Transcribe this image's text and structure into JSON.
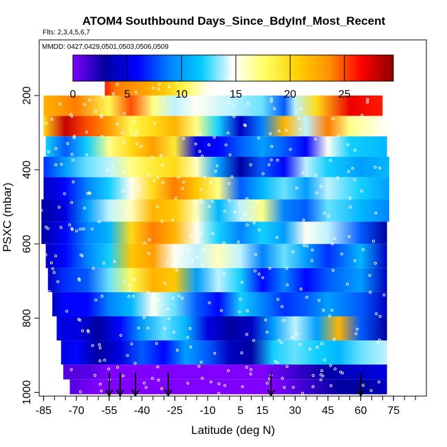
{
  "chart_data": {
    "type": "heatmap",
    "title": "ATOM4 Southbound Days_Since_BdyInf_Most_Recent",
    "flights_label": "Flts: 2,3,4,5,6,7",
    "dates_label": "MMDD: 0427,0429,0501,0503,0506,0509",
    "xlabel": "Latitude (deg N)",
    "ylabel": "PSXC (mbar)",
    "xlim": [
      -87,
      90
    ],
    "ylim": [
      1010,
      50
    ],
    "x_ticks": [
      -85,
      -70,
      -55,
      -40,
      -25,
      -10,
      5,
      15,
      30,
      45,
      60,
      75
    ],
    "x_tick_labels": [
      "-85",
      "-70",
      "-55",
      "-40",
      "-25",
      "-10",
      "5",
      "15",
      "30",
      "45",
      "60",
      "75"
    ],
    "y_ticks": [
      200,
      400,
      600,
      800,
      1000
    ],
    "y_tick_labels": [
      "200",
      "400",
      "600",
      "800",
      "1000"
    ],
    "colorbar": {
      "range": [
        0,
        29.5
      ],
      "ticks": [
        0,
        5,
        10,
        15,
        20,
        25
      ],
      "tick_labels": [
        "0",
        "5",
        "10",
        "15",
        "20",
        "25"
      ],
      "colors": [
        "#7f00ff",
        "#0000a0",
        "#0000ff",
        "#0080ff",
        "#00ccff",
        "#ffffff",
        "#ffff60",
        "#ffd000",
        "#ff9000",
        "#ff0000",
        "#8b0000"
      ]
    },
    "layers": [
      {
        "p_top": 160,
        "p_bot": 200,
        "x_start": -57,
        "x_end": -7,
        "values": [
          [
            -57,
            26
          ],
          [
            -52,
            24
          ],
          [
            -40,
            23
          ],
          [
            -30,
            21
          ],
          [
            -20,
            18
          ],
          [
            -10,
            15
          ]
        ]
      },
      {
        "p_top": 200,
        "p_bot": 255,
        "x_start": -85,
        "x_end": 70,
        "values": [
          [
            -85,
            22
          ],
          [
            -70,
            24
          ],
          [
            -55,
            18
          ],
          [
            -45,
            25
          ],
          [
            -35,
            17
          ],
          [
            -25,
            14
          ],
          [
            -15,
            15
          ],
          [
            0,
            14
          ],
          [
            15,
            13
          ],
          [
            25,
            8
          ],
          [
            30,
            14
          ],
          [
            40,
            20
          ],
          [
            55,
            27
          ],
          [
            70,
            26
          ]
        ]
      },
      {
        "p_top": 255,
        "p_bot": 310,
        "x_start": -85,
        "x_end": 72,
        "values": [
          [
            -85,
            20
          ],
          [
            -75,
            28
          ],
          [
            -65,
            25
          ],
          [
            -55,
            23
          ],
          [
            -45,
            18
          ],
          [
            -35,
            20
          ],
          [
            -25,
            22
          ],
          [
            -15,
            17
          ],
          [
            -5,
            12
          ],
          [
            5,
            4
          ],
          [
            15,
            9
          ],
          [
            25,
            22
          ],
          [
            35,
            14
          ],
          [
            45,
            24
          ],
          [
            55,
            17
          ],
          [
            70,
            15
          ]
        ]
      },
      {
        "p_top": 310,
        "p_bot": 365,
        "x_start": -84,
        "x_end": 72,
        "values": [
          [
            -84,
            12
          ],
          [
            -75,
            8
          ],
          [
            -65,
            12
          ],
          [
            -55,
            17
          ],
          [
            -45,
            20
          ],
          [
            -35,
            23
          ],
          [
            -25,
            19
          ],
          [
            -15,
            5
          ],
          [
            -5,
            6
          ],
          [
            5,
            8
          ],
          [
            15,
            10
          ],
          [
            25,
            8
          ],
          [
            35,
            6
          ],
          [
            45,
            15
          ],
          [
            55,
            12
          ],
          [
            72,
            11
          ]
        ]
      },
      {
        "p_top": 365,
        "p_bot": 420,
        "x_start": -85,
        "x_end": 73,
        "values": [
          [
            -85,
            7
          ],
          [
            -75,
            10
          ],
          [
            -65,
            13
          ],
          [
            -55,
            14
          ],
          [
            -45,
            17
          ],
          [
            -35,
            19
          ],
          [
            -25,
            20
          ],
          [
            -15,
            16
          ],
          [
            -5,
            10
          ],
          [
            5,
            3
          ],
          [
            15,
            8
          ],
          [
            25,
            6
          ],
          [
            35,
            14
          ],
          [
            45,
            12
          ],
          [
            60,
            10
          ],
          [
            73,
            11
          ]
        ]
      },
      {
        "p_top": 420,
        "p_bot": 480,
        "x_start": -85,
        "x_end": 73,
        "values": [
          [
            -85,
            4
          ],
          [
            -75,
            6
          ],
          [
            -65,
            9
          ],
          [
            -55,
            12
          ],
          [
            -45,
            15
          ],
          [
            -35,
            20
          ],
          [
            -25,
            24
          ],
          [
            -15,
            21
          ],
          [
            -5,
            17
          ],
          [
            5,
            8
          ],
          [
            15,
            11
          ],
          [
            25,
            13
          ],
          [
            35,
            10
          ],
          [
            45,
            14
          ],
          [
            60,
            12
          ],
          [
            73,
            10
          ]
        ]
      },
      {
        "p_top": 480,
        "p_bot": 540,
        "x_start": -86,
        "x_end": 73,
        "values": [
          [
            -86,
            3
          ],
          [
            -75,
            5
          ],
          [
            -65,
            10
          ],
          [
            -55,
            14
          ],
          [
            -45,
            16
          ],
          [
            -35,
            22
          ],
          [
            -25,
            21
          ],
          [
            -15,
            16
          ],
          [
            -5,
            11
          ],
          [
            5,
            14
          ],
          [
            15,
            17
          ],
          [
            25,
            9
          ],
          [
            35,
            8
          ],
          [
            45,
            13
          ],
          [
            60,
            11
          ],
          [
            73,
            9
          ]
        ]
      },
      {
        "p_top": 540,
        "p_bot": 600,
        "x_start": -86,
        "x_end": 72,
        "values": [
          [
            -86,
            3
          ],
          [
            -75,
            6
          ],
          [
            -65,
            9
          ],
          [
            -55,
            11
          ],
          [
            -45,
            20
          ],
          [
            -35,
            24
          ],
          [
            -25,
            22
          ],
          [
            -15,
            15
          ],
          [
            -5,
            12
          ],
          [
            5,
            9
          ],
          [
            15,
            12
          ],
          [
            25,
            10
          ],
          [
            35,
            15
          ],
          [
            45,
            14
          ],
          [
            60,
            8
          ],
          [
            72,
            3
          ]
        ]
      },
      {
        "p_top": 600,
        "p_bot": 665,
        "x_start": -84,
        "x_end": 72,
        "values": [
          [
            -84,
            4
          ],
          [
            -75,
            6
          ],
          [
            -65,
            9
          ],
          [
            -55,
            12
          ],
          [
            -45,
            21
          ],
          [
            -35,
            23
          ],
          [
            -25,
            15
          ],
          [
            -15,
            14
          ],
          [
            -5,
            16
          ],
          [
            5,
            14
          ],
          [
            15,
            9
          ],
          [
            25,
            13
          ],
          [
            35,
            10
          ],
          [
            45,
            7
          ],
          [
            60,
            11
          ],
          [
            72,
            4
          ]
        ]
      },
      {
        "p_top": 665,
        "p_bot": 730,
        "x_start": -83,
        "x_end": 72,
        "values": [
          [
            -83,
            4
          ],
          [
            -75,
            7
          ],
          [
            -65,
            8
          ],
          [
            -55,
            13
          ],
          [
            -45,
            18
          ],
          [
            -35,
            22
          ],
          [
            -25,
            21
          ],
          [
            -15,
            10
          ],
          [
            -5,
            14
          ],
          [
            5,
            12
          ],
          [
            15,
            6
          ],
          [
            25,
            9
          ],
          [
            35,
            6
          ],
          [
            45,
            8
          ],
          [
            60,
            10
          ],
          [
            72,
            4
          ]
        ]
      },
      {
        "p_top": 730,
        "p_bot": 795,
        "x_start": -81,
        "x_end": 72,
        "values": [
          [
            -81,
            4
          ],
          [
            -75,
            6
          ],
          [
            -65,
            6
          ],
          [
            -55,
            9
          ],
          [
            -45,
            11
          ],
          [
            -35,
            15
          ],
          [
            -25,
            13
          ],
          [
            -15,
            8
          ],
          [
            -5,
            6
          ],
          [
            5,
            12
          ],
          [
            15,
            9
          ],
          [
            25,
            7
          ],
          [
            35,
            8
          ],
          [
            45,
            10
          ],
          [
            60,
            8
          ],
          [
            72,
            4
          ]
        ]
      },
      {
        "p_top": 795,
        "p_bot": 860,
        "x_start": -79,
        "x_end": 72,
        "values": [
          [
            -79,
            5
          ],
          [
            -70,
            5
          ],
          [
            -60,
            3
          ],
          [
            -50,
            6
          ],
          [
            -40,
            10
          ],
          [
            -30,
            13
          ],
          [
            -20,
            11
          ],
          [
            -10,
            5
          ],
          [
            0,
            3
          ],
          [
            10,
            4
          ],
          [
            20,
            10
          ],
          [
            30,
            14
          ],
          [
            40,
            10
          ],
          [
            50,
            22
          ],
          [
            60,
            8
          ],
          [
            72,
            3
          ]
        ]
      },
      {
        "p_top": 860,
        "p_bot": 925,
        "x_start": -77,
        "x_end": 72,
        "values": [
          [
            -77,
            5
          ],
          [
            -70,
            6
          ],
          [
            -60,
            3
          ],
          [
            -50,
            5
          ],
          [
            -40,
            8
          ],
          [
            -30,
            6
          ],
          [
            -20,
            10
          ],
          [
            -10,
            8
          ],
          [
            0,
            4
          ],
          [
            10,
            3
          ],
          [
            20,
            12
          ],
          [
            30,
            13
          ],
          [
            40,
            12
          ],
          [
            50,
            11
          ],
          [
            60,
            13
          ],
          [
            72,
            14
          ]
        ]
      },
      {
        "p_top": 925,
        "p_bot": 965,
        "x_start": -76,
        "x_end": 72,
        "values": [
          [
            -76,
            1
          ],
          [
            -65,
            1
          ],
          [
            -55,
            0
          ],
          [
            -45,
            0
          ],
          [
            -35,
            0
          ],
          [
            -25,
            0
          ],
          [
            -15,
            0
          ],
          [
            -5,
            0
          ],
          [
            5,
            0
          ],
          [
            15,
            0
          ],
          [
            25,
            1
          ],
          [
            35,
            2
          ],
          [
            45,
            3
          ],
          [
            55,
            4
          ],
          [
            72,
            5
          ]
        ]
      },
      {
        "p_top": 965,
        "p_bot": 1005,
        "x_start": -73,
        "x_end": 72,
        "values": [
          [
            -73,
            1
          ],
          [
            -60,
            0
          ],
          [
            -50,
            0
          ],
          [
            -40,
            0
          ],
          [
            -30,
            0
          ],
          [
            -20,
            0
          ],
          [
            -10,
            0
          ],
          [
            0,
            0
          ],
          [
            10,
            0
          ],
          [
            20,
            0
          ],
          [
            30,
            1
          ],
          [
            40,
            2
          ],
          [
            50,
            3
          ],
          [
            60,
            3
          ],
          [
            72,
            4
          ]
        ]
      }
    ],
    "arrows_lat": [
      -55,
      -50,
      -43,
      -28,
      19,
      60
    ],
    "annotation": "white circles mark observation points"
  }
}
